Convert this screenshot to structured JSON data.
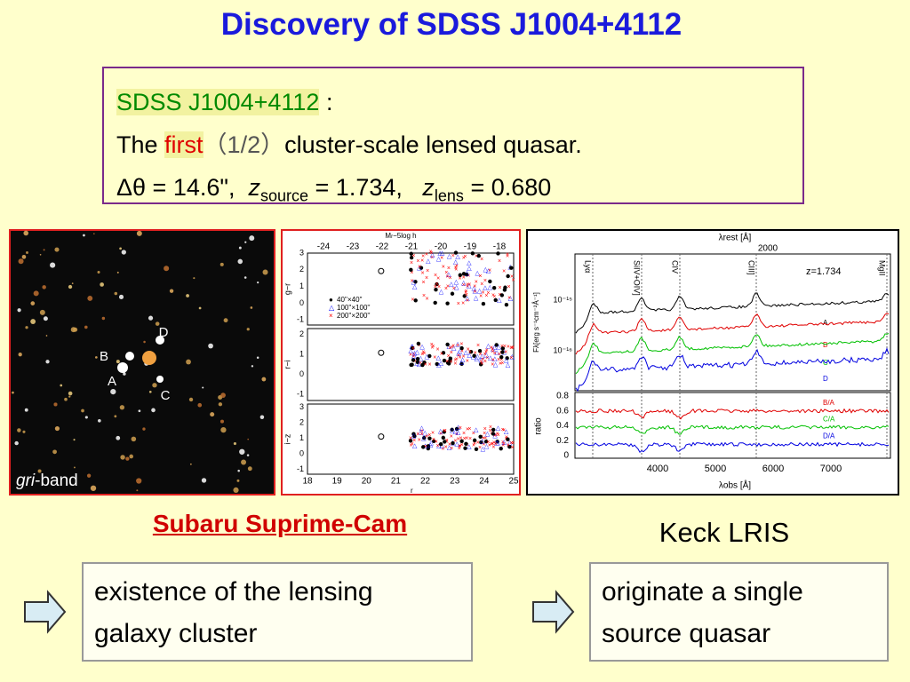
{
  "title": "Discovery of SDSS J1004+4112",
  "infobox": {
    "line1": {
      "name": "SDSS J1004+4112",
      "colon": ":"
    },
    "line2": {
      "pre": "The",
      "first": "first",
      "paren": "（1/2）",
      "post": "cluster-scale lensed quasar."
    },
    "line3": {
      "sep": "Δθ = 14.6\",",
      "z1": "z",
      "sub1": "source",
      "val1": "= 1.734,",
      "z2": "z",
      "sub2": "lens",
      "val2": "= 0.680"
    }
  },
  "image": {
    "labels": [
      "D",
      "B",
      "A",
      "C"
    ],
    "band_italic": "gri",
    "band_rest": "-band"
  },
  "cmd": {
    "top_axis": "M",
    "top_axis_sub": "r",
    "top_axis_rest": "−5log h",
    "top_ticks": [
      -24,
      -23,
      -22,
      -21,
      -20,
      -19,
      -18
    ],
    "bottom_axis": "r",
    "bottom_ticks": [
      18,
      19,
      20,
      21,
      22,
      23,
      24,
      25
    ],
    "panels": [
      {
        "label": "g−r",
        "ticks": [
          3,
          2,
          1,
          0,
          -1
        ]
      },
      {
        "label": "r−i",
        "ticks": [
          2,
          1,
          0,
          -1
        ]
      },
      {
        "label": "i−z",
        "ticks": [
          3,
          2,
          1,
          0,
          -1
        ]
      }
    ],
    "legend": [
      "40''×40''",
      "100''×100''",
      "200''×200''"
    ]
  },
  "spectrum": {
    "top_axis": "λrest [Å]",
    "top_tick": "2000",
    "redshift": "z=1.734",
    "lines": [
      "Lyα",
      "SiIV+OIV]",
      "CIV",
      "CIII]",
      "MgII"
    ],
    "curves": [
      "A",
      "B",
      "C",
      "D"
    ],
    "ratios": [
      "B/A",
      "C/A",
      "D/A"
    ],
    "flux_axis": "Fλ[erg s⁻¹cm⁻²Å⁻¹]",
    "flux_ticks": [
      "10⁻¹⁵",
      "10⁻¹⁶"
    ],
    "ratio_axis": "ratio",
    "ratio_ticks": [
      0.8,
      0.6,
      0.4,
      0.2,
      0
    ],
    "bottom_axis": "λobs [Å]",
    "bottom_ticks": [
      4000,
      5000,
      6000,
      7000
    ]
  },
  "captions": {
    "left": "Subaru Suprime-Cam",
    "right": "Keck LRIS"
  },
  "boxes": {
    "left": [
      "existence of the lensing",
      "galaxy cluster"
    ],
    "right": [
      "originate a single",
      "source quasar"
    ]
  }
}
